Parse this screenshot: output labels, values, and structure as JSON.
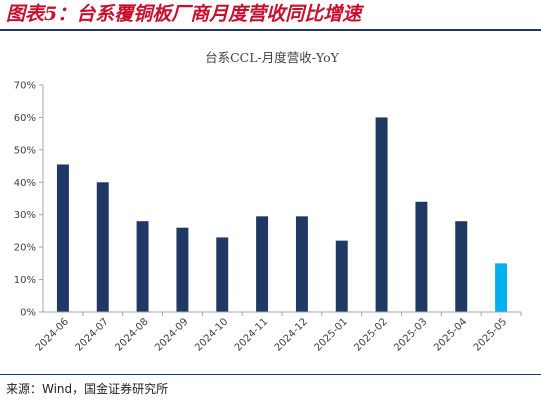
{
  "figure_title": "图表5：台系覆铜板厂商月度营收同比增速",
  "source": "来源：Wind，国金证券研究所",
  "colors": {
    "title": "#c8102e",
    "bar": "#1f3864",
    "bar_highlight": "#00b0f0",
    "axis": "#a6a6a6",
    "rule": "#1f3864"
  },
  "chart_data": {
    "type": "bar",
    "title": "台系CCL-月度营收-YoY",
    "xlabel": "",
    "ylabel": "",
    "categories": [
      "2024-06",
      "2024-07",
      "2024-08",
      "2024-09",
      "2024-10",
      "2024-11",
      "2024-12",
      "2025-01",
      "2025-02",
      "2025-03",
      "2025-04",
      "2025-05"
    ],
    "values": [
      45.5,
      40,
      28,
      26,
      23,
      29.5,
      29.5,
      22,
      60,
      34,
      28,
      15
    ],
    "highlight_index": 11,
    "ylim": [
      0,
      70
    ],
    "yticks": [
      "0%",
      "10%",
      "20%",
      "30%",
      "40%",
      "50%",
      "60%",
      "70%"
    ],
    "grid": false,
    "legend": "none"
  }
}
